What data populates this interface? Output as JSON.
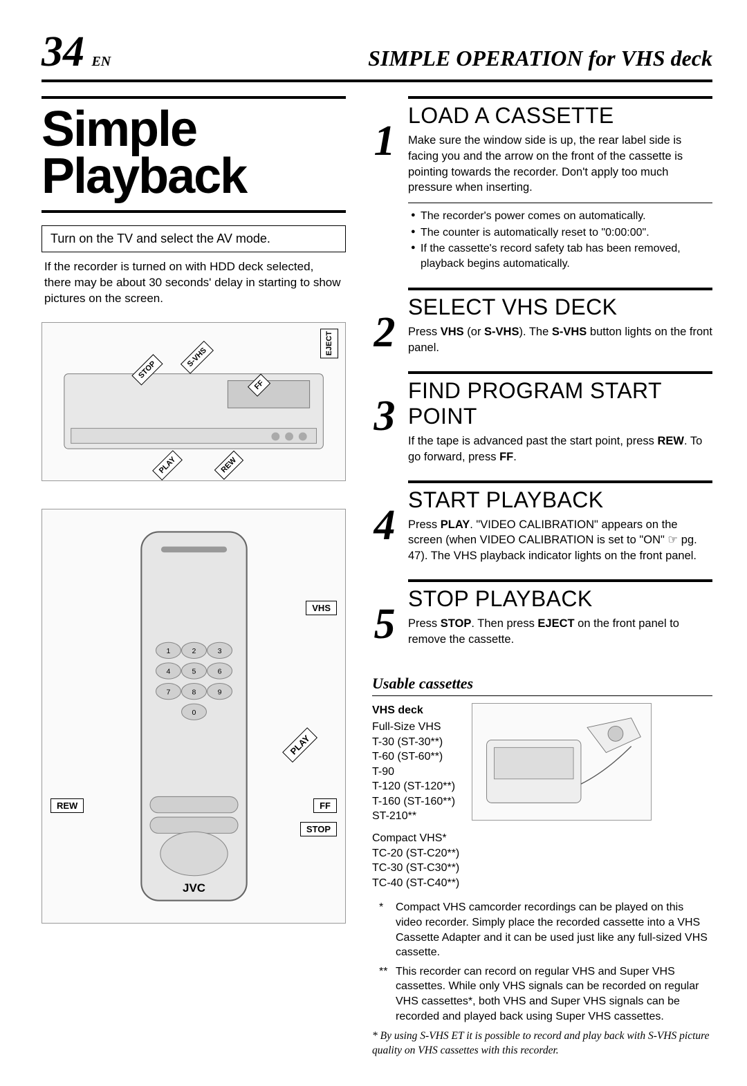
{
  "header": {
    "page_number": "34",
    "lang": "EN",
    "section_title": "SIMPLE OPERATION for VHS deck"
  },
  "left": {
    "main_title_line1": "Simple",
    "main_title_line2": "Playback",
    "instruction_box": "Turn on the TV and select the AV mode.",
    "hdd_note": "If the recorder is turned on with HDD deck selected, there may be about 30 seconds' delay in starting to show pictures on the screen.",
    "vcr_diagram": {
      "placeholder": "VHS deck illustration",
      "labels": {
        "eject": "EJECT",
        "svhs": "S-VHS",
        "stop": "STOP",
        "ff": "FF",
        "play": "PLAY",
        "rew": "REW"
      }
    },
    "remote_diagram": {
      "placeholder": "Remote control illustration",
      "brand": "JVC",
      "labels": {
        "vhs": "VHS",
        "play": "PLAY",
        "rew": "REW",
        "ff": "FF",
        "stop": "STOP"
      }
    }
  },
  "steps": [
    {
      "num": "1",
      "title": "LOAD A CASSETTE",
      "desc": "Make sure the window side is up, the rear label side is facing you and the arrow on the front of the cassette is pointing towards the recorder. Don't apply too much pressure when inserting.",
      "bullets": [
        "The recorder's power comes on automatically.",
        "The counter is automatically reset to \"0:00:00\".",
        "If the cassette's record safety tab has been removed, playback begins automatically."
      ]
    },
    {
      "num": "2",
      "title": "SELECT VHS DECK",
      "desc_html": "Press <b>VHS</b> (or <b>S-VHS</b>). The <b>S-VHS</b> button lights on the front panel."
    },
    {
      "num": "3",
      "title": "FIND PROGRAM START POINT",
      "desc_html": "If the tape is advanced past the start point, press <b>REW</b>. To go forward, press <b>FF</b>."
    },
    {
      "num": "4",
      "title": "START PLAYBACK",
      "desc_html": "Press <b>PLAY</b>. \"VIDEO CALIBRATION\" appears on the screen (when VIDEO CALIBRATION is set to \"ON\" ☞ pg. 47). The VHS playback indicator lights on the front panel."
    },
    {
      "num": "5",
      "title": "STOP PLAYBACK",
      "desc_html": "Press <b>STOP</b>. Then press <b>EJECT</b> on the front panel to remove the cassette."
    }
  ],
  "usable": {
    "heading": "Usable cassettes",
    "deck_label": "VHS deck",
    "full_label": "Full-Size VHS",
    "full_list": [
      "T-30 (ST-30**)",
      "T-60 (ST-60**)",
      "T-90",
      "T-120 (ST-120**)",
      "T-160 (ST-160**)",
      "ST-210**"
    ],
    "compact_label": "Compact VHS*",
    "compact_list": [
      "TC-20 (ST-C20**)",
      "TC-30 (ST-C30**)",
      "TC-40 (ST-C40**)"
    ],
    "adapter_img_placeholder": "Cassette adapter & camcorder illustration",
    "footnote1_mark": "*",
    "footnote1": "Compact VHS camcorder recordings can be played on this video recorder. Simply place the recorded cassette into a VHS Cassette Adapter and it can be used just like any full-sized VHS cassette.",
    "footnote2_mark": "**",
    "footnote2": "This recorder can record on regular VHS and Super VHS cassettes. While only VHS signals can be recorded on regular VHS cassettes*, both VHS and Super VHS signals can be recorded and played back using Super VHS cassettes.",
    "svhs_mark": "*",
    "svhs_note": "By using S-VHS ET it is possible to record and play back with S-VHS picture quality on VHS cassettes with this recorder."
  },
  "colors": {
    "text": "#000000",
    "background": "#ffffff",
    "rule": "#000000",
    "placeholder_border": "#999999",
    "placeholder_bg": "#fafafa",
    "placeholder_text": "#aaaaaa"
  },
  "typography": {
    "page_num_fontsize": 62,
    "main_title_fontsize": 72,
    "step_title_fontsize": 32,
    "step_num_fontsize": 62,
    "body_fontsize": 16.5,
    "header_section_fontsize": 32,
    "uc_title_fontsize": 22
  }
}
